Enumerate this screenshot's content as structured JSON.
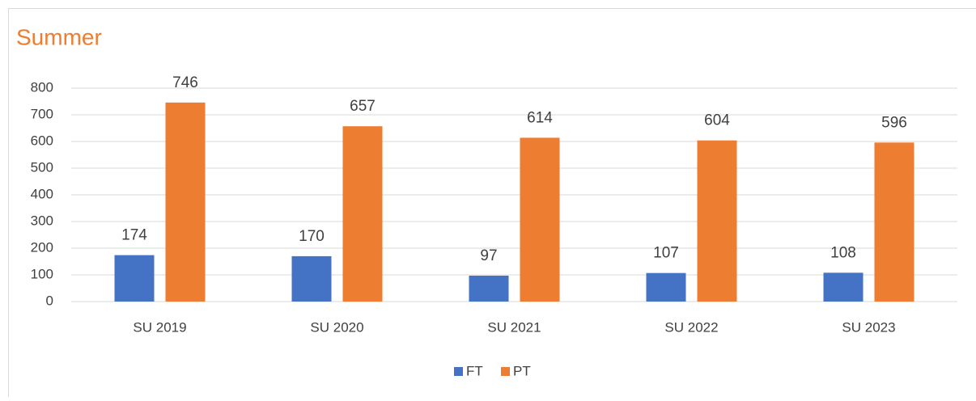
{
  "chart_data": {
    "type": "bar",
    "title": "Summer",
    "categories": [
      "SU 2019",
      "SU 2020",
      "SU 2021",
      "SU 2022",
      "SU 2023"
    ],
    "series": [
      {
        "name": "FT",
        "color": "#4472c4",
        "values": [
          174,
          170,
          97,
          107,
          108
        ]
      },
      {
        "name": "PT",
        "color": "#ed7d31",
        "values": [
          746,
          657,
          614,
          604,
          596
        ]
      }
    ],
    "ylim": [
      0,
      800
    ],
    "yticks": [
      0,
      100,
      200,
      300,
      400,
      500,
      600,
      700,
      800
    ],
    "grid": true,
    "legend": "bottom",
    "data_labels": true
  }
}
